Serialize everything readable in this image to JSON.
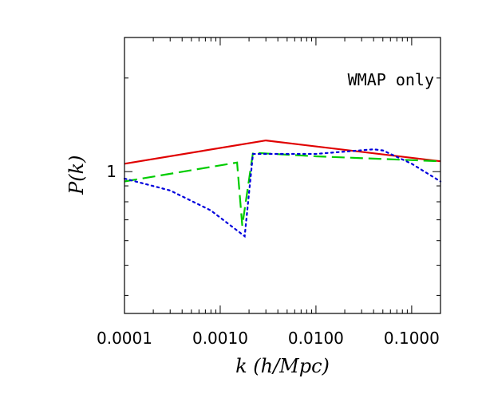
{
  "chart_data": {
    "type": "line",
    "title": "",
    "xlabel": "k (h/Mpc)",
    "ylabel": "P(k)",
    "xscale": "log",
    "yscale": "log",
    "xlim": [
      0.0001,
      0.2
    ],
    "ylim": [
      0.35,
      2.7
    ],
    "x_tick_labels": [
      "0.0001",
      "0.0010",
      "0.0100",
      "0.1000"
    ],
    "x_ticks": [
      0.0001,
      0.001,
      0.01,
      0.1
    ],
    "y_tick_labels": [
      "1"
    ],
    "y_ticks": [
      1
    ],
    "grid": false,
    "annotations": [
      "WMAP only"
    ],
    "series": [
      {
        "color": "#e00000",
        "dash": "solid",
        "x": [
          0.0001,
          0.003,
          0.2
        ],
        "y": [
          1.06,
          1.26,
          1.08
        ]
      },
      {
        "color": "#00cc00",
        "dash": "dashed",
        "x": [
          0.0001,
          0.0015,
          0.0017,
          0.0022,
          0.01,
          0.2
        ],
        "y": [
          0.93,
          1.07,
          0.67,
          1.15,
          1.12,
          1.08
        ]
      },
      {
        "color": "#0000dd",
        "dash": "dotted",
        "x": [
          0.0001,
          0.0003,
          0.0008,
          0.0018,
          0.0022,
          0.01,
          0.04,
          0.05,
          0.1,
          0.2
        ],
        "y": [
          0.95,
          0.87,
          0.75,
          0.62,
          1.14,
          1.14,
          1.18,
          1.17,
          1.06,
          0.93
        ]
      }
    ]
  }
}
